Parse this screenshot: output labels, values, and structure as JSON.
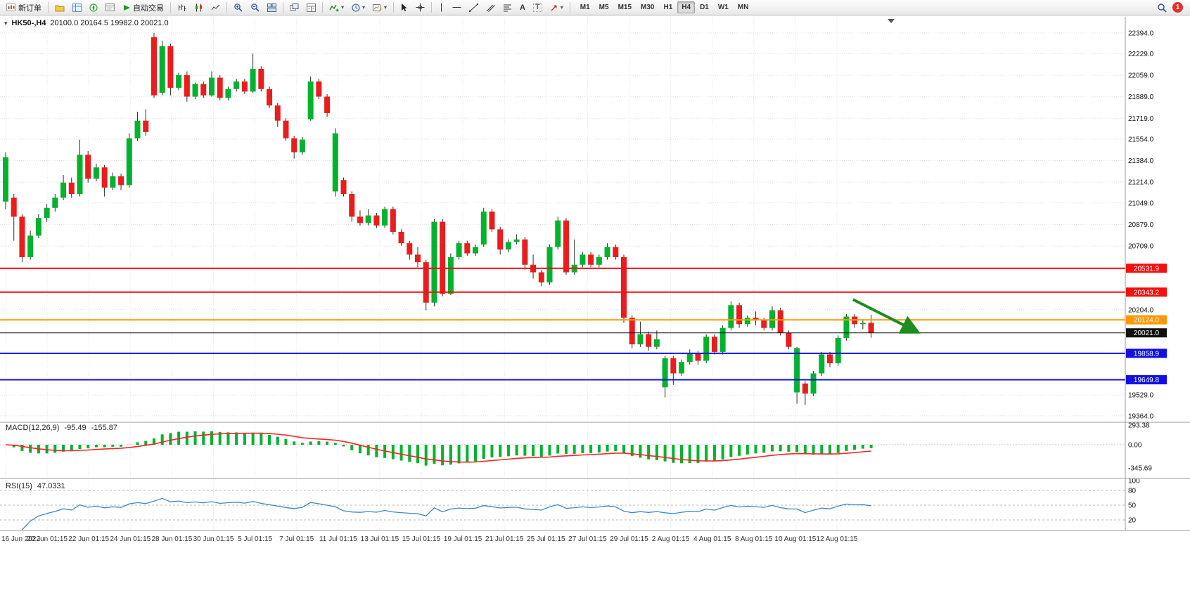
{
  "toolbar": {
    "new_order_label": "新订单",
    "autotrade_label": "自动交易",
    "timeframes": [
      "M1",
      "M5",
      "M15",
      "M30",
      "H1",
      "H4",
      "D1",
      "W1",
      "MN"
    ],
    "active_timeframe": "H4",
    "notification_count": "1",
    "icon_glyphs": {
      "caret": "▾",
      "text_tool": "A",
      "label_tool": "T"
    }
  },
  "chart_header": {
    "symbol_label": "HK50-,H4",
    "ohlc": "20100.0 20164.5 19982.0 20021.0"
  },
  "chart_data": {
    "type": "candlestick",
    "symbol": "HK50-",
    "timeframe": "H4",
    "ohlc_current": {
      "open": 20100.0,
      "high": 20164.5,
      "low": 19982.0,
      "close": 20021.0
    },
    "view": {
      "price_top": 22510,
      "price_bottom": 19319
    },
    "colors": {
      "bull": "#00b22d",
      "bear": "#ea1c1c",
      "macd_histogram": "#00b22d",
      "macd_signal": "#ff2222",
      "rsi": "#3f87c7",
      "grid": "#e0e0e0",
      "arrow": "#1e8c1e"
    },
    "candles": [
      [
        21060,
        21450,
        21000,
        21410
      ],
      [
        21090,
        21120,
        20750,
        20940
      ],
      [
        20940,
        20960,
        20580,
        20620
      ],
      [
        20620,
        20830,
        20600,
        20790
      ],
      [
        20790,
        20960,
        20770,
        20930
      ],
      [
        20930,
        21040,
        20900,
        21010
      ],
      [
        21010,
        21120,
        20980,
        21090
      ],
      [
        21090,
        21270,
        21070,
        21210
      ],
      [
        21210,
        21250,
        21090,
        21120
      ],
      [
        21120,
        21550,
        21100,
        21430
      ],
      [
        21430,
        21460,
        21210,
        21240
      ],
      [
        21240,
        21360,
        21220,
        21330
      ],
      [
        21330,
        21350,
        21100,
        21170
      ],
      [
        21170,
        21290,
        21150,
        21260
      ],
      [
        21260,
        21280,
        21150,
        21190
      ],
      [
        21190,
        21600,
        21170,
        21560
      ],
      [
        21560,
        21770,
        21540,
        21700
      ],
      [
        21700,
        21790,
        21580,
        21610
      ],
      [
        22360,
        22394,
        21880,
        21900
      ],
      [
        21920,
        22330,
        21900,
        22290
      ],
      [
        22290,
        22310,
        21900,
        21960
      ],
      [
        21960,
        22080,
        21940,
        22060
      ],
      [
        22060,
        22090,
        21850,
        21890
      ],
      [
        21890,
        22000,
        21870,
        21990
      ],
      [
        21990,
        22010,
        21880,
        21900
      ],
      [
        21900,
        22090,
        21890,
        22040
      ],
      [
        22040,
        22060,
        21860,
        21880
      ],
      [
        21880,
        21970,
        21860,
        21950
      ],
      [
        21950,
        22030,
        21930,
        22010
      ],
      [
        22010,
        22030,
        21910,
        21930
      ],
      [
        21930,
        22230,
        21920,
        22110
      ],
      [
        22110,
        22130,
        21930,
        21950
      ],
      [
        21950,
        21970,
        21800,
        21820
      ],
      [
        21820,
        21840,
        21650,
        21700
      ],
      [
        21700,
        21720,
        21540,
        21560
      ],
      [
        21560,
        21580,
        21400,
        21450
      ],
      [
        21450,
        21570,
        21430,
        21550
      ],
      [
        21710,
        22050,
        21700,
        22010
      ],
      [
        22010,
        22030,
        21870,
        21890
      ],
      [
        21890,
        21910,
        21730,
        21760
      ],
      [
        21140,
        21640,
        21100,
        21600
      ],
      [
        21230,
        21250,
        21100,
        21120
      ],
      [
        21120,
        21140,
        20900,
        20940
      ],
      [
        20940,
        20990,
        20870,
        20890
      ],
      [
        20890,
        21000,
        20870,
        20950
      ],
      [
        20950,
        20970,
        20850,
        20870
      ],
      [
        20870,
        21020,
        20850,
        21000
      ],
      [
        21000,
        21020,
        20800,
        20820
      ],
      [
        20820,
        20840,
        20710,
        20730
      ],
      [
        20730,
        20750,
        20600,
        20640
      ],
      [
        20640,
        20700,
        20540,
        20580
      ],
      [
        20580,
        20600,
        20200,
        20260
      ],
      [
        20260,
        20920,
        20230,
        20900
      ],
      [
        20900,
        20920,
        20310,
        20330
      ],
      [
        20330,
        20650,
        20320,
        20620
      ],
      [
        20620,
        20750,
        20600,
        20730
      ],
      [
        20730,
        20750,
        20630,
        20650
      ],
      [
        20650,
        20720,
        20630,
        20700
      ],
      [
        20720,
        21010,
        20700,
        20980
      ],
      [
        20980,
        21000,
        20820,
        20840
      ],
      [
        20840,
        20860,
        20640,
        20680
      ],
      [
        20680,
        20760,
        20660,
        20740
      ],
      [
        20740,
        20800,
        20720,
        20760
      ],
      [
        20760,
        20780,
        20520,
        20560
      ],
      [
        20560,
        20640,
        20450,
        20500
      ],
      [
        20500,
        20520,
        20390,
        20420
      ],
      [
        20420,
        20720,
        20400,
        20700
      ],
      [
        20700,
        20940,
        20680,
        20910
      ],
      [
        20910,
        20930,
        20480,
        20500
      ],
      [
        20500,
        20760,
        20480,
        20560
      ],
      [
        20560,
        20660,
        20540,
        20640
      ],
      [
        20640,
        20660,
        20540,
        20560
      ],
      [
        20560,
        20640,
        20540,
        20620
      ],
      [
        20620,
        20730,
        20600,
        20700
      ],
      [
        20700,
        20720,
        20600,
        20620
      ],
      [
        20620,
        20640,
        20100,
        20140
      ],
      [
        20140,
        20160,
        19900,
        19930
      ],
      [
        19930,
        20110,
        19910,
        20010
      ],
      [
        20010,
        20030,
        19880,
        19910
      ],
      [
        19910,
        20040,
        19890,
        19970
      ],
      [
        19590,
        19840,
        19510,
        19820
      ],
      [
        19820,
        19840,
        19610,
        19700
      ],
      [
        19700,
        19810,
        19680,
        19790
      ],
      [
        19790,
        19890,
        19770,
        19860
      ],
      [
        19860,
        19880,
        19770,
        19800
      ],
      [
        19800,
        20010,
        19780,
        19990
      ],
      [
        19990,
        20010,
        19850,
        19870
      ],
      [
        19870,
        20080,
        19850,
        20060
      ],
      [
        20060,
        20270,
        20040,
        20240
      ],
      [
        20240,
        20260,
        20060,
        20090
      ],
      [
        20090,
        20160,
        20070,
        20140
      ],
      [
        20140,
        20190,
        20080,
        20120
      ],
      [
        20120,
        20140,
        20040,
        20060
      ],
      [
        20060,
        20230,
        20040,
        20200
      ],
      [
        20200,
        20220,
        20000,
        20020
      ],
      [
        20020,
        20040,
        19890,
        19910
      ],
      [
        19550,
        19910,
        19460,
        19900
      ],
      [
        19620,
        19640,
        19450,
        19540
      ],
      [
        19540,
        19720,
        19520,
        19700
      ],
      [
        19700,
        19870,
        19680,
        19850
      ],
      [
        19850,
        19870,
        19750,
        19780
      ],
      [
        19780,
        20000,
        19760,
        19980
      ],
      [
        19980,
        20170,
        19960,
        20150
      ],
      [
        20150,
        20170,
        20060,
        20090
      ],
      [
        20090,
        20130,
        20050,
        20100
      ],
      [
        20100,
        20164.5,
        19982,
        20021
      ]
    ],
    "x_labels": [
      "16 Jun 2022",
      "20 Jun 01:15",
      "22 Jun 01:15",
      "24 Jun 01:15",
      "28 Jun 01:15",
      "30 Jun 01:15",
      "5 Jul 01:15",
      "7 Jul 01:15",
      "11 Jul 01:15",
      "13 Jul 01:15",
      "15 Jul 01:15",
      "19 Jul 01:15",
      "21 Jul 01:15",
      "25 Jul 01:15",
      "27 Jul 01:15",
      "29 Jul 01:15",
      "2 Aug 01:15",
      "4 Aug 01:15",
      "8 Aug 01:15",
      "10 Aug 01:15",
      "12 Aug 01:15"
    ],
    "y_axis_ticks": [
      "22394.0",
      "22229.0",
      "22059.0",
      "21889.0",
      "21719.0",
      "21554.0",
      "21384.0",
      "21214.0",
      "21049.0",
      "20879.0",
      "20709.0",
      "20204.0",
      "19529.0",
      "19364.0"
    ],
    "hlines": [
      {
        "price": 20531.9,
        "label": "20531.9",
        "color": "#f50f0f",
        "width": 2
      },
      {
        "price": 20343.2,
        "label": "20343.2",
        "color": "#f50f0f",
        "width": 2
      },
      {
        "price": 20124.0,
        "label": "20124.0",
        "color": "#ff9800",
        "width": 2
      },
      {
        "price": 20021.0,
        "label": "20021.0",
        "color": "#111111",
        "width": 1
      },
      {
        "price": 19858.9,
        "label": "19858.9",
        "color": "#1010e6",
        "width": 2
      },
      {
        "price": 19649.8,
        "label": "19649.8",
        "color": "#1010e6",
        "width": 2
      }
    ],
    "arrow": {
      "from_index": 102.8,
      "from_price": 20285,
      "to_index": 110.4,
      "to_price": 20035,
      "color": "#1e8c1e",
      "width": 4
    },
    "indicators": {
      "macd": {
        "label": "MACD(12,26,9)",
        "value_main": "-95.49",
        "value_signal": "-155.87",
        "params": [
          12,
          26,
          9
        ],
        "axis_labels": [
          "293.38",
          "0.00",
          "-345.69"
        ]
      },
      "rsi": {
        "label": "RSI(15)",
        "value": "47.0331",
        "period": 15,
        "level_labels": [
          "100",
          "80",
          "50",
          "20"
        ]
      }
    }
  }
}
